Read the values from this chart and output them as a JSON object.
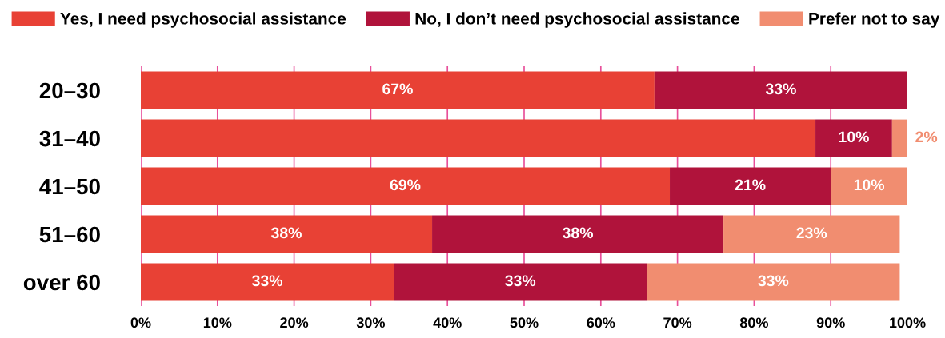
{
  "chart_data": {
    "type": "bar",
    "orientation": "horizontal",
    "stacked": true,
    "categories": [
      "20–30",
      "31–40",
      "41–50",
      "51–60",
      "over 60"
    ],
    "series": [
      {
        "name": "Yes, I need psychosocial assistance",
        "color": "#e84135",
        "values": [
          67,
          88,
          69,
          38,
          33
        ],
        "value_labels": [
          "67%",
          null,
          "69%",
          "38%",
          "33%"
        ]
      },
      {
        "name": "No, I don’t need psychosocial assistance",
        "color": "#b0133b",
        "values": [
          33,
          10,
          21,
          38,
          33
        ],
        "value_labels": [
          "33%",
          "10%",
          "21%",
          "38%",
          "33%"
        ]
      },
      {
        "name": "Prefer not to say",
        "color": "#f18d70",
        "values": [
          0,
          2,
          10,
          23,
          33
        ],
        "value_labels": [
          null,
          "2%",
          "10%",
          "23%",
          "33%"
        ]
      }
    ],
    "xlim": [
      0,
      100
    ],
    "xticks": [
      {
        "value": 0,
        "label": "0%"
      },
      {
        "value": 10,
        "label": "10%"
      },
      {
        "value": 20,
        "label": "20%"
      },
      {
        "value": 30,
        "label": "30%"
      },
      {
        "value": 40,
        "label": "40%"
      },
      {
        "value": 50,
        "label": "50%"
      },
      {
        "value": 60,
        "label": "60%"
      },
      {
        "value": 70,
        "label": "70%"
      },
      {
        "value": 80,
        "label": "80%"
      },
      {
        "value": 90,
        "label": "90%"
      },
      {
        "value": 100,
        "label": "100%"
      }
    ],
    "grid": "x",
    "legend": "top left"
  }
}
